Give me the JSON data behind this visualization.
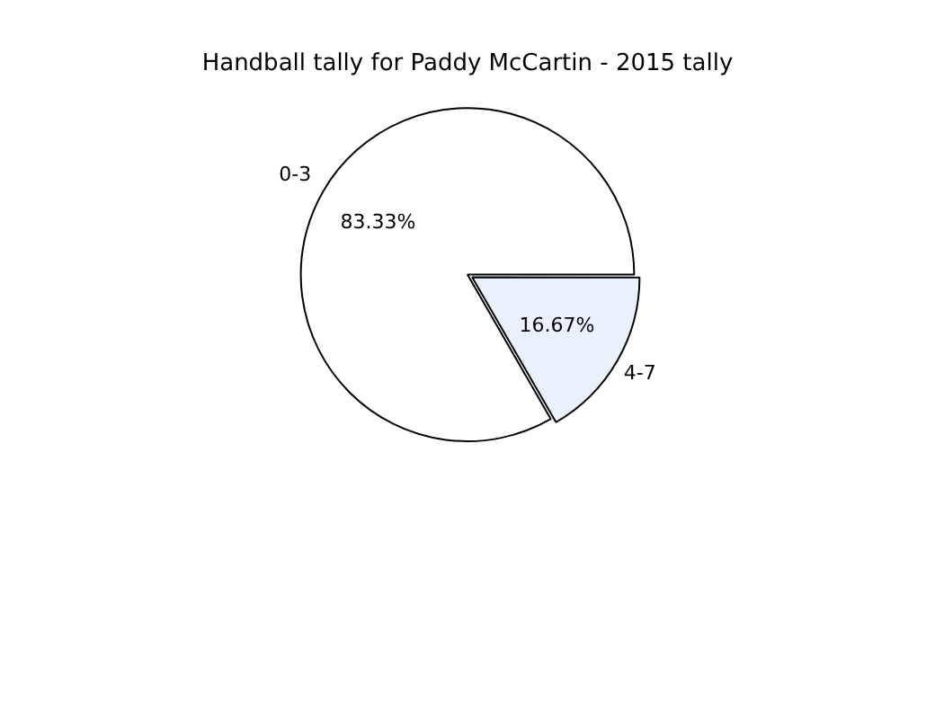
{
  "chart_data": {
    "type": "pie",
    "title": "Handball tally for Paddy McCartin - 2015 tally",
    "categories": [
      "0-3",
      "4-7"
    ],
    "values": [
      83.33,
      16.67
    ],
    "colors": [
      "#ffffff",
      "#eaf0fc"
    ],
    "value_labels": [
      "83.33%",
      "16.67%"
    ],
    "legend": false
  }
}
